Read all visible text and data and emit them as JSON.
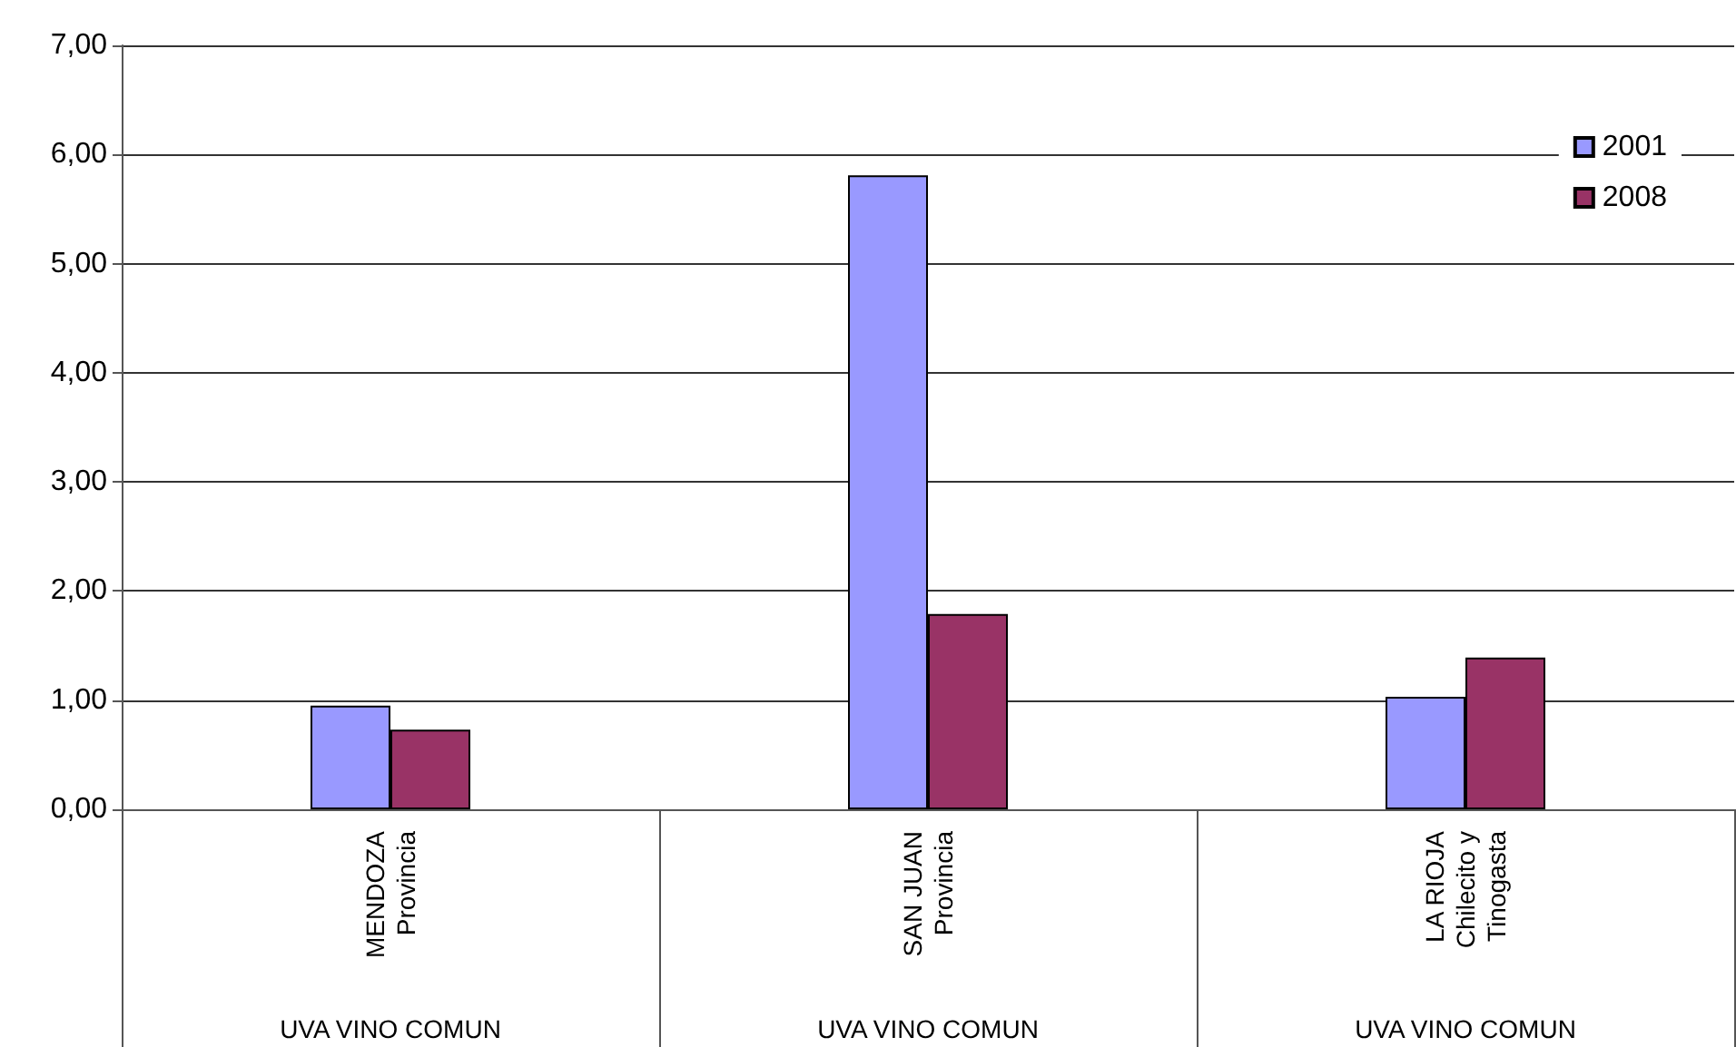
{
  "chart_data": {
    "type": "bar",
    "categories": [
      "MENDOZA\nProvincia",
      "SAN JUAN\nProvincia",
      "LA RIOJA\nChilecito y\nTinogasta"
    ],
    "series": [
      {
        "name": "2001",
        "color": "#9999ff",
        "values": [
          0.95,
          5.81,
          1.03
        ]
      },
      {
        "name": "2008",
        "color": "#993366",
        "values": [
          0.73,
          1.79,
          1.39
        ]
      }
    ],
    "ylim": [
      0,
      7
    ],
    "yticks": [
      {
        "value": 0,
        "label": "0,00"
      },
      {
        "value": 1,
        "label": "1,00"
      },
      {
        "value": 2,
        "label": "2,00"
      },
      {
        "value": 3,
        "label": "3,00"
      },
      {
        "value": 4,
        "label": "4,00"
      },
      {
        "value": 5,
        "label": "5,00"
      },
      {
        "value": 6,
        "label": "6,00"
      },
      {
        "value": 7,
        "label": "7,00"
      }
    ],
    "grid": "y",
    "legend": "top right",
    "annotations": [
      "UVA VINO COMUN",
      "UVA VINO COMUN",
      "UVA VINO COMUN"
    ]
  }
}
